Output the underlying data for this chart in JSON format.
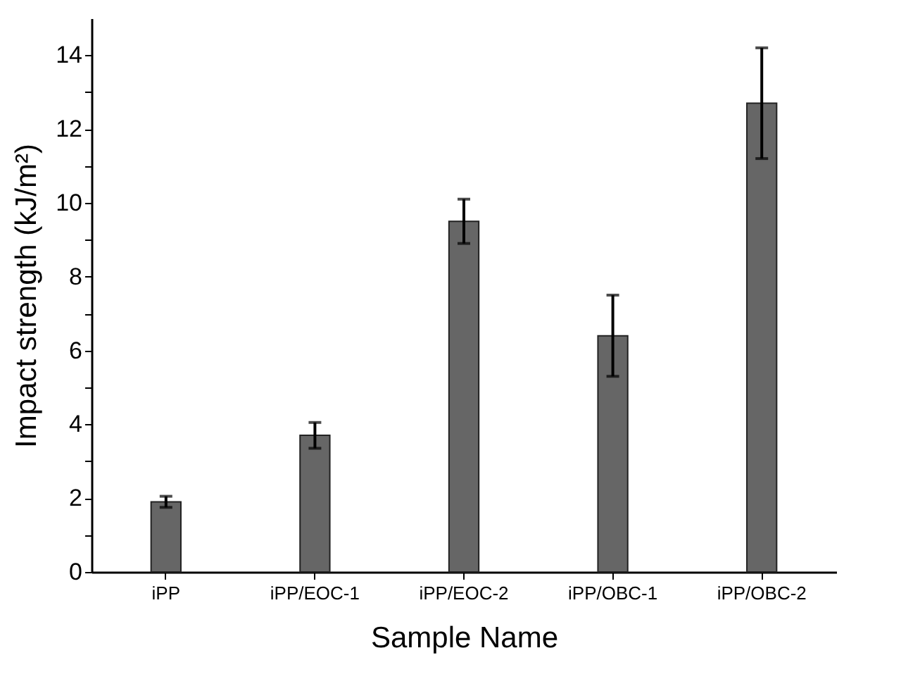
{
  "chart_data": {
    "type": "bar",
    "xlabel": "Sample Name",
    "ylabel": "Impact strength (kJ/m²)",
    "categories": [
      "iPP",
      "iPP/EOC-1",
      "iPP/EOC-2",
      "iPP/OBC-1",
      "iPP/OBC-2"
    ],
    "values": [
      1.9,
      3.7,
      9.5,
      6.4,
      12.7
    ],
    "errors": [
      0.15,
      0.35,
      0.6,
      1.1,
      1.5
    ],
    "color": "#666666",
    "ylim": [
      0,
      15
    ],
    "yticks": [
      0,
      {
        "value": 1,
        "label": null
      },
      2,
      {
        "value": 3,
        "label": null
      },
      4,
      {
        "value": 5,
        "label": null
      },
      6,
      {
        "value": 7,
        "label": null
      },
      8,
      {
        "value": 9,
        "label": null
      },
      10,
      {
        "value": 11,
        "label": null
      },
      12,
      {
        "value": 13,
        "label": null
      },
      14
    ],
    "grid": false
  }
}
